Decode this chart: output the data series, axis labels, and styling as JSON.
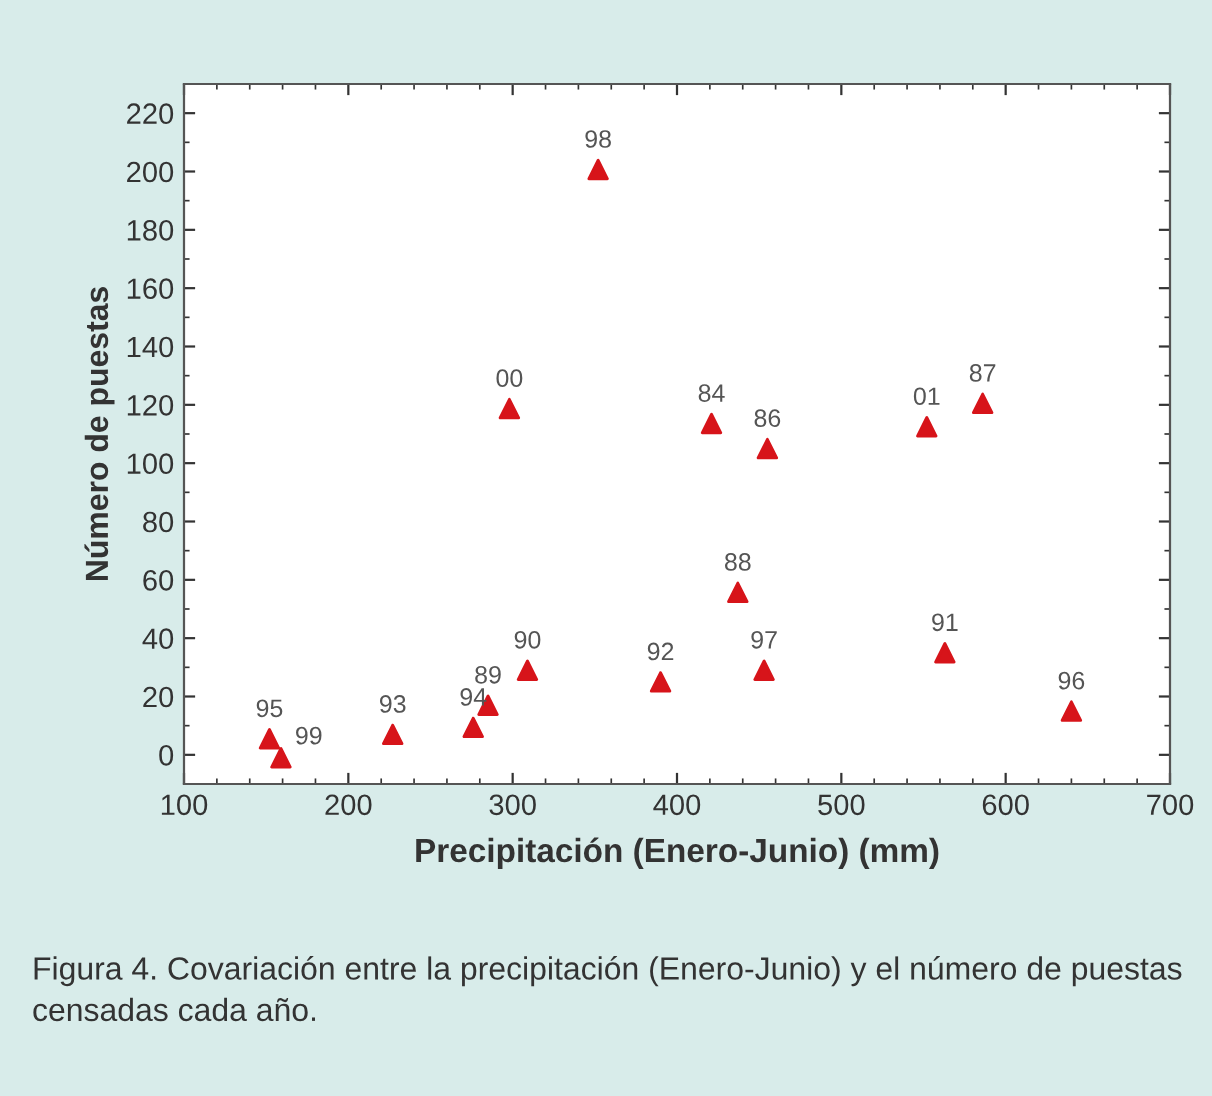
{
  "chart_data": {
    "type": "scatter",
    "xlabel": "Precipitación (Enero-Junio) (mm)",
    "ylabel": "Número de puestas",
    "x": [
      152,
      159,
      227,
      276,
      285,
      309,
      298,
      352,
      390,
      421,
      455,
      437,
      453,
      552,
      586,
      563,
      640
    ],
    "series": [
      {
        "color": "#d7141a",
        "values": [
          5.5,
          -1,
          7,
          9.4,
          17,
          29,
          118.7,
          200.7,
          25,
          113.6,
          105,
          55.7,
          29,
          112.5,
          120.5,
          35,
          15
        ]
      }
    ],
    "marker": "triangle",
    "grid": false,
    "legend": false,
    "xlim": [
      100,
      700
    ],
    "xticks": [
      100,
      200,
      300,
      400,
      500,
      600,
      700
    ],
    "ylim": [
      -10,
      230
    ],
    "yticks": [
      0,
      20,
      40,
      60,
      80,
      100,
      120,
      140,
      160,
      180,
      200,
      220
    ],
    "annotations": [
      {
        "text": "95",
        "x": 152,
        "y": 5.5
      },
      {
        "text": "99",
        "x": 159,
        "y": -1
      },
      {
        "text": "93",
        "x": 227,
        "y": 7
      },
      {
        "text": "94",
        "x": 276,
        "y": 9.4
      },
      {
        "text": "89",
        "x": 285,
        "y": 17
      },
      {
        "text": "90",
        "x": 309,
        "y": 29
      },
      {
        "text": "00",
        "x": 298,
        "y": 118.7
      },
      {
        "text": "98",
        "x": 352,
        "y": 200.7
      },
      {
        "text": "92",
        "x": 390,
        "y": 25
      },
      {
        "text": "84",
        "x": 421,
        "y": 113.6
      },
      {
        "text": "86",
        "x": 455,
        "y": 105
      },
      {
        "text": "88",
        "x": 437,
        "y": 55.7
      },
      {
        "text": "97",
        "x": 453,
        "y": 29
      },
      {
        "text": "01",
        "x": 552,
        "y": 112.5
      },
      {
        "text": "87",
        "x": 586,
        "y": 120.5
      },
      {
        "text": "91",
        "x": 563,
        "y": 35
      },
      {
        "text": "96",
        "x": 640,
        "y": 15
      },
      "Figura 4. Covariación entre la precipitación (Enero-Junio) y el número de puestas censadas cada año."
    ]
  }
}
